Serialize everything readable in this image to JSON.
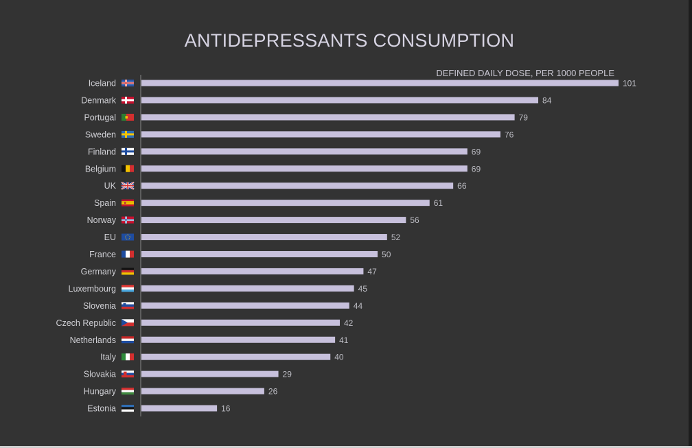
{
  "chart_data": {
    "type": "bar",
    "orientation": "horizontal",
    "title": "ANTIDEPRESSANTS CONSUMPTION",
    "subtitle": "DEFINED DAILY DOSE, PER 1000 PEOPLE",
    "categories": [
      "Iceland",
      "Denmark",
      "Portugal",
      "Sweden",
      "Finland",
      "Belgium",
      "UK",
      "Spain",
      "Norway",
      "EU",
      "France",
      "Germany",
      "Luxembourg",
      "Slovenia",
      "Czech Republic",
      "Netherlands",
      "Italy",
      "Slovakia",
      "Hungary",
      "Estonia"
    ],
    "values": [
      101,
      84,
      79,
      76,
      69,
      69,
      66,
      61,
      56,
      52,
      50,
      47,
      45,
      44,
      42,
      41,
      40,
      29,
      26,
      16
    ],
    "xlim": [
      0,
      101
    ],
    "grid": false,
    "bar_color": "#c7c0dc",
    "flags": [
      "iceland-flag-icon",
      "denmark-flag-icon",
      "portugal-flag-icon",
      "sweden-flag-icon",
      "finland-flag-icon",
      "belgium-flag-icon",
      "uk-flag-icon",
      "spain-flag-icon",
      "norway-flag-icon",
      "eu-flag-icon",
      "france-flag-icon",
      "germany-flag-icon",
      "luxembourg-flag-icon",
      "slovenia-flag-icon",
      "czech-republic-flag-icon",
      "netherlands-flag-icon",
      "italy-flag-icon",
      "slovakia-flag-icon",
      "hungary-flag-icon",
      "estonia-flag-icon"
    ]
  }
}
